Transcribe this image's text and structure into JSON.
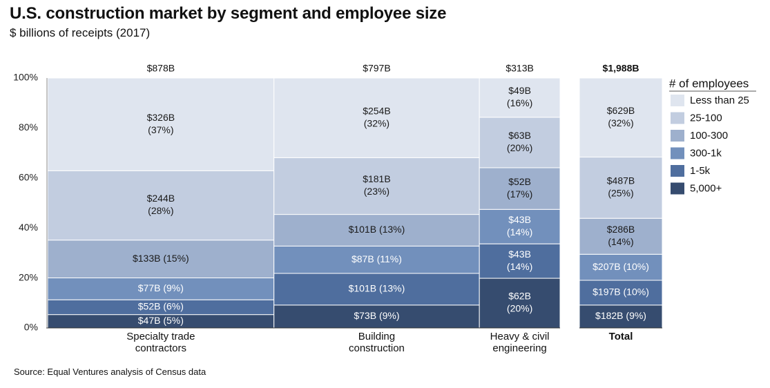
{
  "title": "U.S. construction market by segment and employee size",
  "subtitle": "$ billions of receipts (2017)",
  "source": "Source: Equal Ventures analysis of Census data",
  "chart_data": {
    "type": "marimekko",
    "ylim": [
      0,
      100
    ],
    "y_ticks": [
      "0%",
      "20%",
      "40%",
      "60%",
      "80%",
      "100%"
    ],
    "legend_title": "# of employees",
    "legend_position": "right",
    "categories": [
      "Less than 25",
      "25-100",
      "100-300",
      "300-1k",
      "1-5k",
      "5,000+"
    ],
    "colors": [
      "#dfe5ef",
      "#c2cde0",
      "#9eb0cd",
      "#7290bc",
      "#4f6e9e",
      "#364c6f"
    ],
    "segments": [
      {
        "name": "Specialty trade\ncontractors",
        "total": 878,
        "total_label": "$878B",
        "values": [
          326,
          244,
          133,
          77,
          52,
          47
        ],
        "labels": [
          "$326B\n(37%)",
          "$244B\n(28%)",
          "$133B (15%)",
          "$77B (9%)",
          "$52B (6%)",
          "$47B (5%)"
        ]
      },
      {
        "name": "Building\nconstruction",
        "total": 797,
        "total_label": "$797B",
        "values": [
          254,
          181,
          101,
          87,
          101,
          73
        ],
        "labels": [
          "$254B\n(32%)",
          "$181B\n(23%)",
          "$101B (13%)",
          "$87B (11%)",
          "$101B (13%)",
          "$73B (9%)"
        ]
      },
      {
        "name": "Heavy & civil\nengineering",
        "total": 313,
        "total_label": "$313B",
        "values": [
          49,
          63,
          52,
          43,
          43,
          62
        ],
        "labels": [
          "$49B\n(16%)",
          "$63B\n(20%)",
          "$52B\n(17%)",
          "$43B\n(14%)",
          "$43B\n(14%)",
          "$62B\n(20%)"
        ]
      },
      {
        "name": "Total",
        "total": 1988,
        "total_label": "$1,988B",
        "is_total": true,
        "values": [
          629,
          487,
          286,
          207,
          197,
          182
        ],
        "labels": [
          "$629B\n(32%)",
          "$487B\n(25%)",
          "$286B\n(14%)",
          "$207B (10%)",
          "$197B (10%)",
          "$182B (9%)"
        ]
      }
    ]
  }
}
